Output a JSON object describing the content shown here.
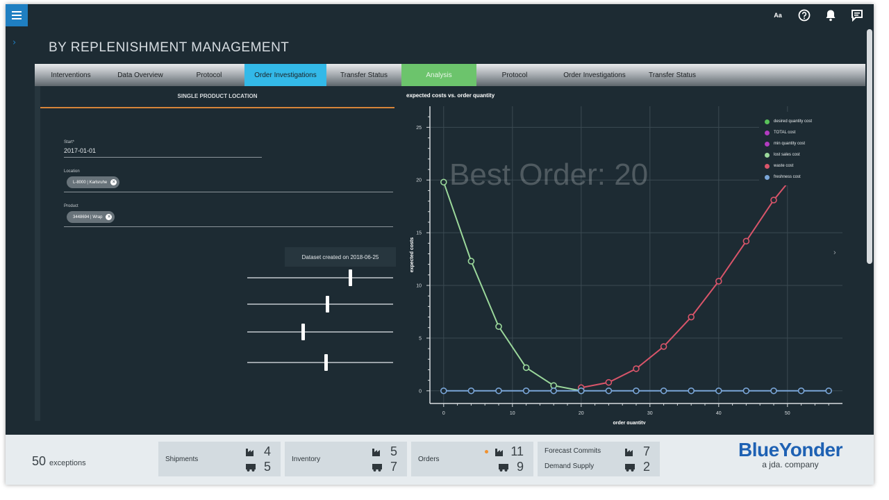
{
  "header": {
    "title": "BY REPLENISHMENT MANAGEMENT",
    "icons": [
      "menu-icon",
      "font-size-icon",
      "help-icon",
      "bell-icon",
      "chat-icon"
    ],
    "font_icon_text": "Aa"
  },
  "tabs": [
    {
      "label": "Interventions",
      "state": "normal"
    },
    {
      "label": "Data Overview",
      "state": "normal"
    },
    {
      "label": "Protocol",
      "state": "normal"
    },
    {
      "label": "Order Investigations",
      "state": "active"
    },
    {
      "label": "Transfer Status",
      "state": "normal"
    },
    {
      "label": "Analysis",
      "state": "green"
    },
    {
      "label": "Protocol",
      "state": "normal"
    },
    {
      "label": "Order Investigations",
      "state": "normal"
    },
    {
      "label": "Transfer Status",
      "state": "normal"
    }
  ],
  "form": {
    "section_title": "SINGLE PRODUCT LOCATION",
    "start_label": "Start*",
    "start_value": "2017-01-01",
    "location_label": "Location",
    "location_chip": "L-8000 | Karlsruhe",
    "product_label": "Product",
    "product_chip": "3448694 | Wrap",
    "dataset_note": "Dataset created on 2018-06-25",
    "sliders": [
      0.71,
      0.55,
      0.38,
      0.54
    ]
  },
  "chart_data": {
    "type": "line",
    "title": "expected costs vs. order quantity",
    "xlabel": "order quantity",
    "ylabel": "expected costs",
    "annotation": "Best Order: 20",
    "xlim": [
      -2,
      58
    ],
    "ylim": [
      -1.2,
      27
    ],
    "x_ticks": [
      0,
      10,
      20,
      30,
      40,
      50
    ],
    "y_ticks": [
      0,
      5,
      10,
      15,
      20,
      25
    ],
    "grid": true,
    "legend_position": "top-right",
    "series": [
      {
        "name": "desired quantity cost",
        "color": "#59c25a",
        "x": [],
        "y": []
      },
      {
        "name": "TOTAL cost",
        "color": "#b23cc0",
        "x": [],
        "y": []
      },
      {
        "name": "min quantity cost",
        "color": "#b23cc0",
        "x": [],
        "y": []
      },
      {
        "name": "lost sales cost",
        "color": "#9bd89b",
        "x": [
          0,
          4,
          8,
          12,
          16,
          20
        ],
        "y": [
          19.8,
          12.3,
          6.1,
          2.2,
          0.5,
          0.0
        ]
      },
      {
        "name": "waste cost",
        "color": "#d9556a",
        "x": [
          20,
          24,
          28,
          32,
          36,
          40,
          44,
          48,
          52
        ],
        "y": [
          0.3,
          0.8,
          2.1,
          4.2,
          7.0,
          10.4,
          14.2,
          18.1,
          21.3
        ]
      },
      {
        "name": "freshness cost",
        "color": "#7aa6d8",
        "x": [
          0,
          4,
          8,
          12,
          16,
          20,
          24,
          28,
          32,
          36,
          40,
          44,
          48,
          52,
          56
        ],
        "y": [
          0,
          0,
          0,
          0,
          0,
          0,
          0,
          0,
          0,
          0,
          0,
          0,
          0,
          0,
          0
        ]
      }
    ]
  },
  "footer": {
    "exceptions_count": "50",
    "exceptions_label": "exceptions",
    "cards": [
      {
        "label": "Shipments",
        "top": "4",
        "bottom": "5"
      },
      {
        "label": "Inventory",
        "top": "5",
        "bottom": "7"
      },
      {
        "label": "Orders",
        "top": "11",
        "bottom": "9"
      },
      {
        "label_top": "Forecast Commits",
        "label_bottom": "Demand Supply",
        "top": "7",
        "bottom": "2"
      }
    ],
    "brand_name": "BlueYonder",
    "brand_sub": "a jda. company"
  }
}
